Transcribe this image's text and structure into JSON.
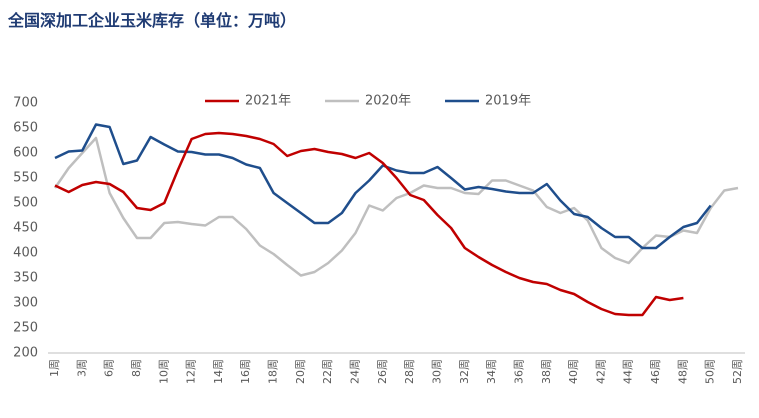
{
  "chart_data": {
    "type": "line",
    "title": "全国深加工企业玉米库存（单位：万吨）",
    "categories": [
      "1周",
      null,
      "3周",
      null,
      "6周",
      null,
      "8周",
      null,
      "10周",
      null,
      "12周",
      null,
      "14周",
      null,
      "16周",
      null,
      "18周",
      null,
      "20周",
      null,
      "22周",
      null,
      "24周",
      null,
      "26周",
      null,
      "28周",
      null,
      "30周",
      null,
      "32周",
      null,
      "34周",
      null,
      "36周",
      null,
      "38周",
      null,
      "40周",
      null,
      "42周",
      null,
      "44周",
      null,
      "46周",
      null,
      "48周",
      null,
      "50周",
      null,
      "52周"
    ],
    "series": [
      {
        "name": "2021年",
        "color": "#c00000",
        "values": [
          535,
          522,
          536,
          542,
          538,
          522,
          490,
          486,
          500,
          566,
          628,
          638,
          640,
          638,
          634,
          628,
          618,
          594,
          604,
          608,
          602,
          598,
          590,
          600,
          580,
          550,
          516,
          506,
          476,
          450,
          410,
          392,
          376,
          362,
          350,
          342,
          338,
          326,
          318,
          302,
          288,
          278,
          276,
          276,
          312,
          306,
          310,
          null,
          null,
          null,
          null
        ]
      },
      {
        "name": "2020年",
        "color": "#bfbfbf",
        "values": [
          530,
          570,
          600,
          630,
          520,
          470,
          430,
          430,
          460,
          462,
          458,
          455,
          472,
          472,
          448,
          415,
          398,
          376,
          355,
          362,
          380,
          405,
          440,
          495,
          485,
          510,
          520,
          535,
          530,
          530,
          520,
          518,
          545,
          545,
          535,
          525,
          492,
          480,
          490,
          465,
          410,
          390,
          380,
          410,
          435,
          432,
          445,
          440,
          490,
          525,
          530
        ]
      },
      {
        "name": "2019年",
        "color": "#1f4e8c",
        "values": [
          590,
          603,
          605,
          657,
          652,
          578,
          585,
          632,
          617,
          603,
          602,
          597,
          597,
          590,
          577,
          570,
          520,
          500,
          480,
          460,
          460,
          480,
          520,
          545,
          575,
          565,
          560,
          560,
          572,
          550,
          527,
          532,
          528,
          523,
          520,
          520,
          538,
          505,
          478,
          472,
          450,
          432,
          432,
          410,
          410,
          432,
          452,
          460,
          495,
          null,
          null
        ]
      }
    ],
    "ylim": [
      200,
      700
    ],
    "yticks": [
      200,
      250,
      300,
      350,
      400,
      450,
      500,
      550,
      600,
      650,
      700
    ],
    "legend": "top"
  }
}
